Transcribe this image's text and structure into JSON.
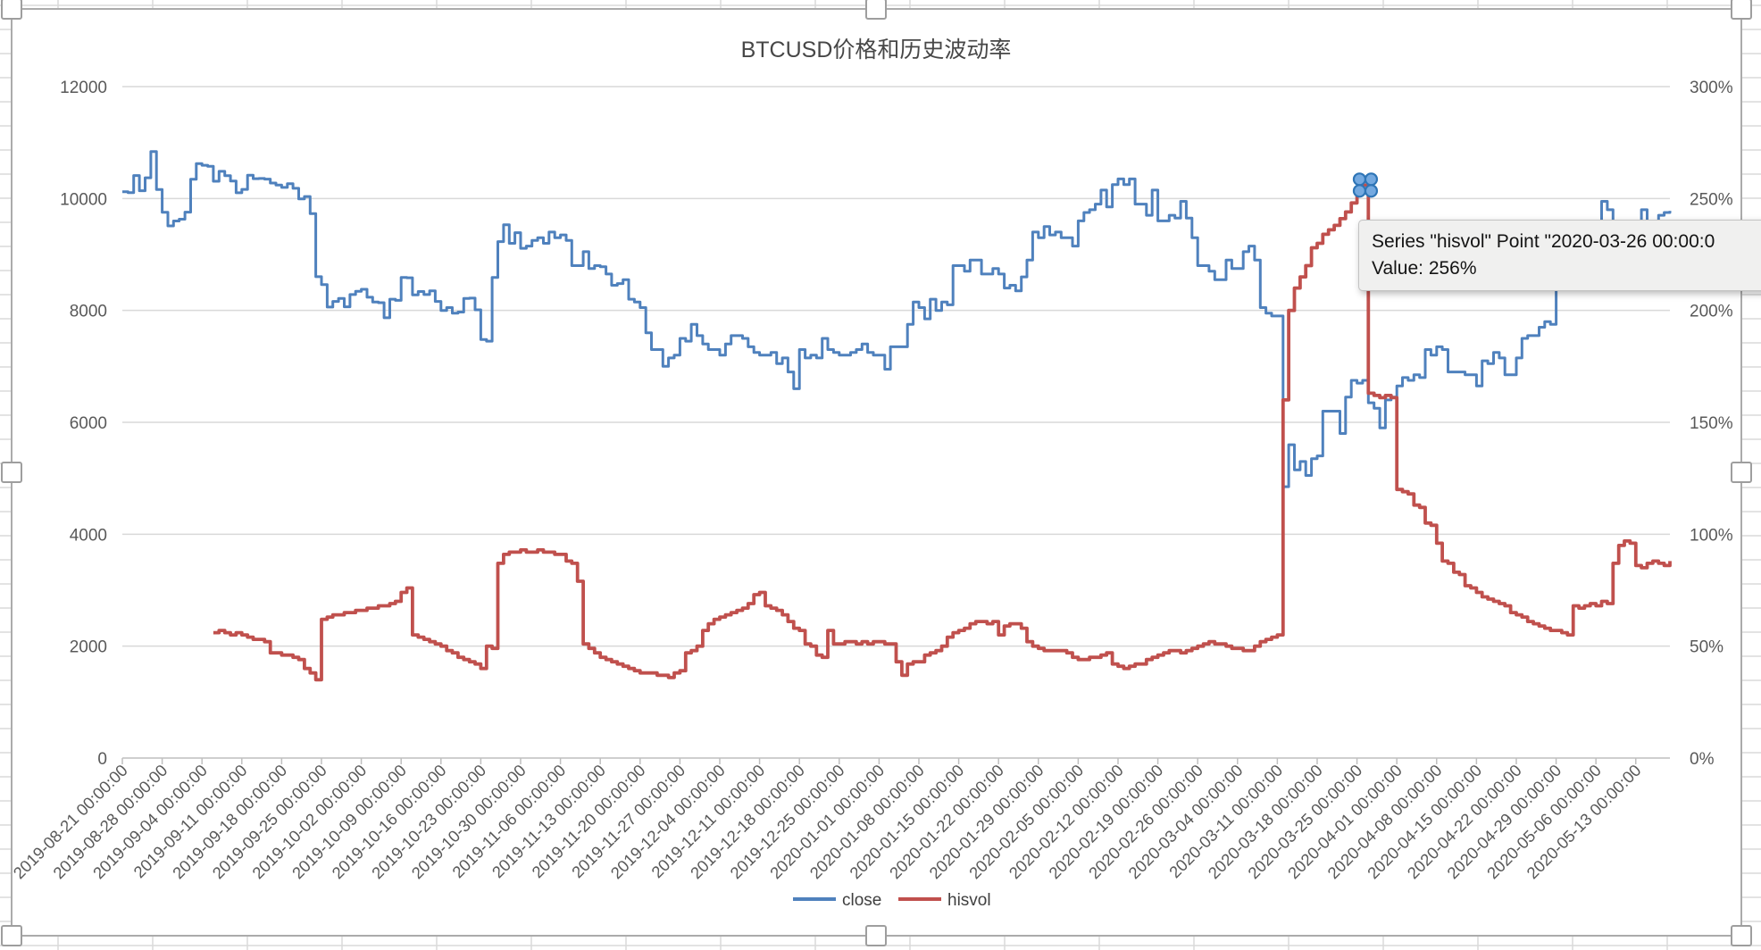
{
  "title": "BTCUSD价格和历史波动率",
  "tooltip": {
    "line1": "Series \"hisvol\" Point \"2020-03-26 00:00:0",
    "line2": "Value: 256%"
  },
  "legend": [
    {
      "label": "close",
      "color": "#4F81BD"
    },
    {
      "label": "hisvol",
      "color": "#C0504D"
    }
  ],
  "colors": {
    "close_line": "#4F81BD",
    "hisvol_line": "#C0504D",
    "gridline": "#D9D9D9",
    "axis_line": "#BFBFBF",
    "axis_text": "#595959",
    "sheet_grid": "#DADADA",
    "chart_border": "#ABABAB",
    "marker_fill": "#74A9E0",
    "marker_ring": "#2E75B6"
  },
  "chart_data": {
    "type": "line",
    "title": "BTCUSD价格和历史波动率",
    "x_unit": "days",
    "x_start_date": "2019-08-21",
    "x_total_days": 272,
    "x_tick_interval_days": 7,
    "grid": true,
    "legend_position": "bottom",
    "x_tick_labels": [
      "2019-08-21 00:00:00",
      "2019-08-28 00:00:00",
      "2019-09-04 00:00:00",
      "2019-09-11 00:00:00",
      "2019-09-18 00:00:00",
      "2019-09-25 00:00:00",
      "2019-10-02 00:00:00",
      "2019-10-09 00:00:00",
      "2019-10-16 00:00:00",
      "2019-10-23 00:00:00",
      "2019-10-30 00:00:00",
      "2019-11-06 00:00:00",
      "2019-11-13 00:00:00",
      "2019-11-20 00:00:00",
      "2019-11-27 00:00:00",
      "2019-12-04 00:00:00",
      "2019-12-11 00:00:00",
      "2019-12-18 00:00:00",
      "2019-12-25 00:00:00",
      "2020-01-01 00:00:00",
      "2020-01-08 00:00:00",
      "2020-01-15 00:00:00",
      "2020-01-22 00:00:00",
      "2020-01-29 00:00:00",
      "2020-02-05 00:00:00",
      "2020-02-12 00:00:00",
      "2020-02-19 00:00:00",
      "2020-02-26 00:00:00",
      "2020-03-04 00:00:00",
      "2020-03-11 00:00:00",
      "2020-03-18 00:00:00",
      "2020-03-25 00:00:00",
      "2020-04-01 00:00:00",
      "2020-04-08 00:00:00",
      "2020-04-15 00:00:00",
      "2020-04-22 00:00:00",
      "2020-04-29 00:00:00",
      "2020-05-06 00:00:00",
      "2020-05-13 00:00:00"
    ],
    "left_axis": {
      "min": 0,
      "max": 12000,
      "step": 2000,
      "tick_labels": [
        "0",
        "2000",
        "4000",
        "6000",
        "8000",
        "10000",
        "12000"
      ],
      "series": "close"
    },
    "right_axis": {
      "min": 0,
      "max": 300,
      "step": 50,
      "tick_labels": [
        "0%",
        "50%",
        "100%",
        "150%",
        "200%",
        "250%",
        "300%"
      ],
      "series": "hisvol"
    },
    "series": [
      {
        "name": "close",
        "axis": "left",
        "color": "#4F81BD",
        "start_day": 0,
        "values": [
          10120,
          10105,
          10410,
          10140,
          10370,
          10840,
          10160,
          9754,
          9510,
          9598,
          9630,
          9757,
          10346,
          10623,
          10594,
          10575,
          10308,
          10486,
          10407,
          10313,
          10102,
          10163,
          10415,
          10354,
          10358,
          10347,
          10276,
          10241,
          10198,
          10266,
          10183,
          9994,
          10036,
          9729,
          8603,
          8461,
          8060,
          8160,
          8215,
          8065,
          8284,
          8343,
          8378,
          8235,
          8150,
          8138,
          7869,
          8200,
          8180,
          8590,
          8583,
          8279,
          8338,
          8284,
          8350,
          8160,
          8000,
          8050,
          7950,
          7970,
          8215,
          8220,
          8010,
          7480,
          7450,
          8590,
          9230,
          9530,
          9200,
          9390,
          9110,
          9150,
          9250,
          9300,
          9200,
          9400,
          9300,
          9350,
          9250,
          8800,
          8800,
          9050,
          8750,
          8800,
          8780,
          8650,
          8450,
          8480,
          8550,
          8200,
          8150,
          8050,
          7600,
          7300,
          7300,
          7000,
          7150,
          7200,
          7500,
          7450,
          7750,
          7550,
          7400,
          7300,
          7300,
          7200,
          7400,
          7550,
          7550,
          7500,
          7350,
          7250,
          7200,
          7200,
          7250,
          7050,
          7150,
          6900,
          6600,
          7300,
          7150,
          7200,
          7150,
          7500,
          7300,
          7250,
          7200,
          7200,
          7250,
          7300,
          7400,
          7250,
          7200,
          7200,
          6950,
          7350,
          7350,
          7350,
          7750,
          8150,
          8050,
          7850,
          8200,
          8000,
          8150,
          8100,
          8800,
          8800,
          8700,
          8900,
          8900,
          8650,
          8650,
          8750,
          8650,
          8400,
          8450,
          8350,
          8600,
          8900,
          9400,
          9300,
          9500,
          9350,
          9400,
          9300,
          9300,
          9150,
          9600,
          9750,
          9800,
          9900,
          10150,
          9850,
          10250,
          10350,
          10250,
          10350,
          9900,
          9900,
          9700,
          10150,
          9600,
          9600,
          9700,
          9650,
          9950,
          9650,
          9300,
          8800,
          8800,
          8700,
          8550,
          8550,
          8900,
          8750,
          8750,
          9050,
          9150,
          8900,
          8050,
          7950,
          7900,
          7900,
          4850,
          5600,
          5150,
          5300,
          5050,
          5350,
          5400,
          6200,
          6200,
          6200,
          5800,
          6450,
          6750,
          6700,
          6750,
          6350,
          6250,
          5900,
          6400,
          6450,
          6650,
          6800,
          6750,
          6850,
          6800,
          7300,
          7200,
          7350,
          7300,
          6900,
          6900,
          6900,
          6850,
          6850,
          6650,
          7100,
          7050,
          7250,
          7150,
          6850,
          6850,
          7150,
          7500,
          7550,
          7550,
          7700,
          7800,
          7750,
          8800,
          8650,
          8850,
          8950,
          8900,
          8900,
          9000,
          9150,
          9950,
          9800,
          9550,
          8700,
          8550,
          8800,
          9300,
          9800,
          9300,
          9400,
          9700,
          9750,
          9780
        ]
      },
      {
        "name": "hisvol",
        "axis": "right",
        "color": "#C0504D",
        "start_day": 16,
        "values_percent": [
          56,
          57,
          56,
          55,
          56,
          55,
          54,
          53,
          53,
          52,
          47,
          47,
          46,
          46,
          45,
          44,
          40,
          38,
          35,
          62,
          63,
          64,
          64,
          65,
          65,
          66,
          66,
          67,
          67,
          68,
          68,
          69,
          70,
          74,
          76,
          55,
          54,
          53,
          52,
          51,
          50,
          48,
          47,
          45,
          44,
          43,
          42,
          40,
          50,
          49,
          87,
          91,
          92,
          92,
          93,
          92,
          92,
          93,
          92,
          92,
          91,
          91,
          88,
          87,
          79,
          51,
          49,
          47,
          45,
          44,
          43,
          42,
          41,
          40,
          39,
          38,
          38,
          38,
          37,
          37,
          36,
          38,
          39,
          47,
          48,
          50,
          57,
          60,
          62,
          63,
          64,
          65,
          66,
          67,
          69,
          73,
          74,
          68,
          67,
          66,
          64,
          61,
          58,
          57,
          51,
          50,
          46,
          45,
          57,
          51,
          51,
          52,
          52,
          51,
          52,
          51,
          52,
          52,
          51,
          51,
          43,
          37,
          42,
          43,
          43,
          46,
          47,
          48,
          50,
          54,
          56,
          57,
          58,
          60,
          61,
          61,
          60,
          61,
          55,
          59,
          60,
          60,
          58,
          52,
          50,
          49,
          48,
          48,
          48,
          48,
          47,
          45,
          44,
          44,
          45,
          45,
          46,
          47,
          42,
          41,
          40,
          41,
          42,
          42,
          44,
          45,
          46,
          47,
          48,
          48,
          47,
          48,
          49,
          50,
          51,
          52,
          51,
          51,
          50,
          49,
          49,
          48,
          48,
          50,
          52,
          53,
          54,
          55,
          160,
          200,
          210,
          215,
          220,
          228,
          230,
          234,
          236,
          238,
          241,
          244,
          248,
          252,
          256,
          163,
          162,
          161,
          162,
          161,
          120,
          119,
          118,
          113,
          112,
          105,
          104,
          96,
          88,
          87,
          83,
          82,
          77,
          76,
          74,
          72,
          71,
          70,
          69,
          68,
          65,
          64,
          63,
          61,
          60,
          59,
          58,
          57,
          57,
          56,
          55,
          68,
          67,
          68,
          69,
          68,
          70,
          69,
          87,
          95,
          97,
          96,
          86,
          85,
          87,
          88,
          87,
          86,
          88
        ]
      }
    ],
    "selected_point": {
      "series": "hisvol",
      "x_label": "2020-03-26 00:00:00",
      "day_index": 218,
      "value_percent": 256
    }
  }
}
